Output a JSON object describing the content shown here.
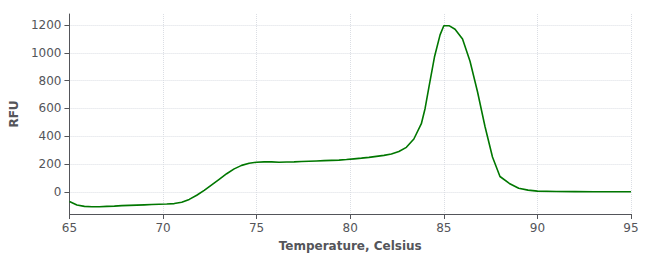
{
  "chart_data": {
    "type": "line",
    "xlabel": "Temperature, Celsius",
    "ylabel": "RFU",
    "x": [
      65.0,
      65.4,
      65.8,
      66.2,
      66.6,
      67.0,
      67.4,
      67.8,
      68.2,
      68.6,
      69.0,
      69.4,
      69.8,
      70.2,
      70.6,
      71.0,
      71.4,
      71.8,
      72.2,
      72.6,
      73.0,
      73.4,
      73.8,
      74.2,
      74.6,
      75.0,
      75.4,
      75.8,
      76.2,
      76.6,
      77.0,
      77.4,
      77.8,
      78.2,
      78.6,
      79.0,
      79.4,
      79.8,
      80.2,
      80.6,
      81.0,
      81.4,
      81.8,
      82.2,
      82.6,
      83.0,
      83.4,
      83.8,
      84.0,
      84.2,
      84.5,
      84.8,
      85.0,
      85.3,
      85.6,
      86.0,
      86.4,
      86.8,
      87.2,
      87.6,
      88.0,
      88.5,
      89.0,
      89.5,
      90.0,
      91.0,
      92.0,
      93.0,
      94.0,
      95.0
    ],
    "values": [
      -70,
      -95,
      -105,
      -108,
      -108,
      -105,
      -103,
      -100,
      -98,
      -96,
      -94,
      -92,
      -90,
      -88,
      -85,
      -75,
      -55,
      -25,
      10,
      50,
      90,
      130,
      165,
      190,
      205,
      213,
      215,
      215,
      213,
      214,
      215,
      218,
      220,
      222,
      224,
      226,
      228,
      232,
      237,
      242,
      248,
      255,
      262,
      272,
      290,
      320,
      380,
      490,
      600,
      750,
      970,
      1130,
      1195,
      1195,
      1170,
      1100,
      940,
      720,
      470,
      250,
      110,
      60,
      25,
      12,
      5,
      2,
      1,
      0,
      0,
      0
    ],
    "color": "#007700",
    "xlim": [
      65,
      95
    ],
    "ylim": [
      -160,
      1280
    ],
    "xticks": [
      65,
      70,
      75,
      80,
      85,
      90,
      95
    ],
    "yticks": [
      0,
      200,
      400,
      600,
      800,
      1000,
      1200
    ],
    "grid": true
  }
}
